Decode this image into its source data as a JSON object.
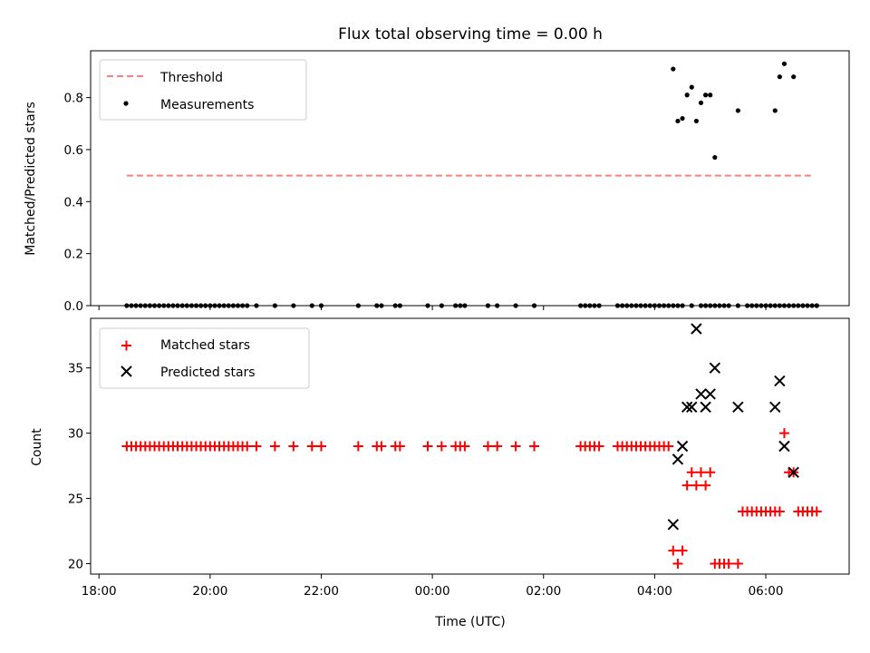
{
  "chart_data": [
    {
      "type": "scatter",
      "title": "Flux total observing time = 0.00 h",
      "xlabel": "",
      "ylabel": "Matched/Predicted stars",
      "ylim": [
        0,
        0.98
      ],
      "yticks": [
        "0.0",
        "0.2",
        "0.4",
        "0.6",
        "0.8"
      ],
      "legend_position": "top-left",
      "series": [
        {
          "name": "Threshold",
          "kind": "dashed-line",
          "color": "#ff7f7f",
          "x_range": [
            "18:30",
            "06:50"
          ],
          "value": 0.5
        },
        {
          "name": "Measurements",
          "kind": "dots",
          "color": "#000000",
          "x": [
            "18:30",
            "18:35",
            "18:40",
            "18:45",
            "18:50",
            "18:55",
            "19:00",
            "19:05",
            "19:10",
            "19:15",
            "19:20",
            "19:25",
            "19:30",
            "19:35",
            "19:40",
            "19:45",
            "19:50",
            "19:55",
            "20:00",
            "20:05",
            "20:10",
            "20:15",
            "20:20",
            "20:25",
            "20:30",
            "20:35",
            "20:40",
            "20:50",
            "21:10",
            "21:30",
            "21:50",
            "22:00",
            "22:40",
            "23:00",
            "23:05",
            "23:20",
            "23:25",
            "23:55",
            "24:10",
            "24:25",
            "24:30",
            "24:35",
            "25:00",
            "25:10",
            "25:30",
            "25:50",
            "26:40",
            "26:45",
            "26:50",
            "26:55",
            "27:00",
            "27:20",
            "27:25",
            "27:30",
            "27:35",
            "27:40",
            "27:45",
            "27:50",
            "27:55",
            "28:00",
            "28:05",
            "28:10",
            "28:15",
            "28:20",
            "28:25",
            "28:30",
            "28:40",
            "28:50",
            "28:55",
            "29:00",
            "29:05",
            "29:10",
            "29:15",
            "29:20",
            "29:30",
            "29:40",
            "29:45",
            "29:50",
            "29:55",
            "30:00",
            "30:05",
            "30:10",
            "30:15",
            "30:20",
            "30:25",
            "30:30",
            "30:35",
            "30:40",
            "30:45",
            "30:50",
            "30:55",
            "30:55"
          ],
          "y": [
            0,
            0,
            0,
            0,
            0,
            0,
            0,
            0,
            0,
            0,
            0,
            0,
            0,
            0,
            0,
            0,
            0,
            0,
            0,
            0,
            0,
            0,
            0,
            0,
            0,
            0,
            0,
            0,
            0,
            0,
            0,
            0,
            0,
            0,
            0,
            0,
            0,
            0,
            0,
            0,
            0,
            0,
            0,
            0,
            0,
            0,
            0,
            0,
            0,
            0,
            0,
            0,
            0,
            0,
            0,
            0,
            0,
            0,
            0,
            0,
            0,
            0,
            0,
            0,
            0,
            0,
            0,
            0,
            0,
            0,
            0,
            0,
            0,
            0,
            0,
            0,
            0,
            0,
            0,
            0,
            0,
            0,
            0,
            0,
            0,
            0,
            0,
            0,
            0,
            0,
            0,
            0
          ]
        },
        {
          "name": "",
          "kind": "dots-high",
          "color": "#000000",
          "x": [
            "28:20",
            "28:25",
            "28:30",
            "28:35",
            "28:40",
            "28:45",
            "28:50",
            "28:55",
            "29:00",
            "29:05",
            "29:30",
            "30:10",
            "30:15",
            "30:20",
            "30:30"
          ],
          "y": [
            0.91,
            0.71,
            0.72,
            0.81,
            0.84,
            0.71,
            0.78,
            0.81,
            0.81,
            0.57,
            0.75,
            0.75,
            0.88,
            0.93,
            0.88
          ]
        }
      ]
    },
    {
      "type": "scatter",
      "title": "",
      "xlabel": "Time (UTC)",
      "ylabel": "Count",
      "ylim": [
        19.2,
        38.8
      ],
      "yticks": [
        "20",
        "25",
        "30",
        "35"
      ],
      "xticks": [
        "18:00",
        "20:00",
        "22:00",
        "00:00",
        "02:00",
        "04:00",
        "06:00"
      ],
      "legend_position": "top-left",
      "series": [
        {
          "name": "Matched stars",
          "marker": "plus",
          "color": "#ff0000",
          "x": [
            "18:30",
            "18:35",
            "18:40",
            "18:45",
            "18:50",
            "18:55",
            "19:00",
            "19:05",
            "19:10",
            "19:15",
            "19:20",
            "19:25",
            "19:30",
            "19:35",
            "19:40",
            "19:45",
            "19:50",
            "19:55",
            "20:00",
            "20:05",
            "20:10",
            "20:15",
            "20:20",
            "20:25",
            "20:30",
            "20:35",
            "20:40",
            "20:50",
            "21:10",
            "21:30",
            "21:50",
            "22:00",
            "22:40",
            "23:00",
            "23:05",
            "23:20",
            "23:25",
            "23:55",
            "24:10",
            "24:25",
            "24:30",
            "24:35",
            "25:00",
            "25:10",
            "25:30",
            "25:50",
            "26:40",
            "26:45",
            "26:50",
            "26:55",
            "27:00",
            "27:20",
            "27:25",
            "27:30",
            "27:35",
            "27:40",
            "27:45",
            "27:50",
            "27:55",
            "28:00",
            "28:05",
            "28:10",
            "28:15",
            "28:20",
            "28:25",
            "28:30",
            "28:35",
            "28:40",
            "28:45",
            "28:50",
            "28:55",
            "29:00",
            "29:05",
            "29:10",
            "29:15",
            "29:20",
            "29:30",
            "29:35",
            "29:40",
            "29:45",
            "29:50",
            "29:55",
            "30:00",
            "30:05",
            "30:10",
            "30:15",
            "30:20",
            "30:25",
            "30:30",
            "30:35",
            "30:40",
            "30:45",
            "30:50",
            "30:55"
          ],
          "y": [
            29,
            29,
            29,
            29,
            29,
            29,
            29,
            29,
            29,
            29,
            29,
            29,
            29,
            29,
            29,
            29,
            29,
            29,
            29,
            29,
            29,
            29,
            29,
            29,
            29,
            29,
            29,
            29,
            29,
            29,
            29,
            29,
            29,
            29,
            29,
            29,
            29,
            29,
            29,
            29,
            29,
            29,
            29,
            29,
            29,
            29,
            29,
            29,
            29,
            29,
            29,
            29,
            29,
            29,
            29,
            29,
            29,
            29,
            29,
            29,
            29,
            29,
            29,
            21,
            20,
            21,
            26,
            27,
            26,
            27,
            26,
            27,
            20,
            20,
            20,
            20,
            20,
            24,
            24,
            24,
            24,
            24,
            24,
            24,
            24,
            24,
            30,
            27,
            27,
            24,
            24,
            24,
            24,
            24
          ]
        },
        {
          "name": "Predicted stars",
          "marker": "x",
          "color": "#000000",
          "x": [
            "28:20",
            "28:25",
            "28:30",
            "28:35",
            "28:40",
            "28:45",
            "28:50",
            "28:55",
            "29:00",
            "29:05",
            "29:30",
            "30:10",
            "30:15",
            "30:20",
            "30:30"
          ],
          "y": [
            23,
            28,
            29,
            32,
            32,
            38,
            33,
            32,
            33,
            35,
            32,
            32,
            34,
            29,
            27
          ]
        }
      ]
    }
  ]
}
